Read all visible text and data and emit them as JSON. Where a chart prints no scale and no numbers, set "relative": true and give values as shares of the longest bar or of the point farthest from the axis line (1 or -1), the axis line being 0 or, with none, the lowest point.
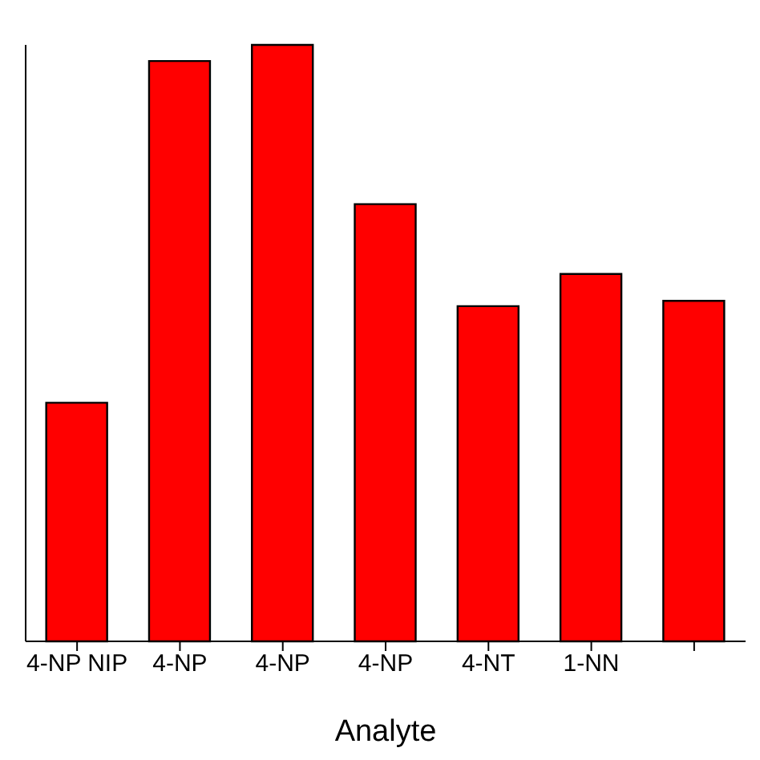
{
  "chart_data": {
    "type": "bar",
    "relative": true,
    "xlabel": "Analyte",
    "categories": [
      "4-NP NIP",
      "4-NP",
      "4-NP",
      "4-NP",
      "4-NT",
      "1-NN",
      null
    ],
    "values": [
      0.4,
      0.973,
      1,
      0.733,
      0.562,
      0.616,
      0.571
    ],
    "color": "#ff0000"
  }
}
